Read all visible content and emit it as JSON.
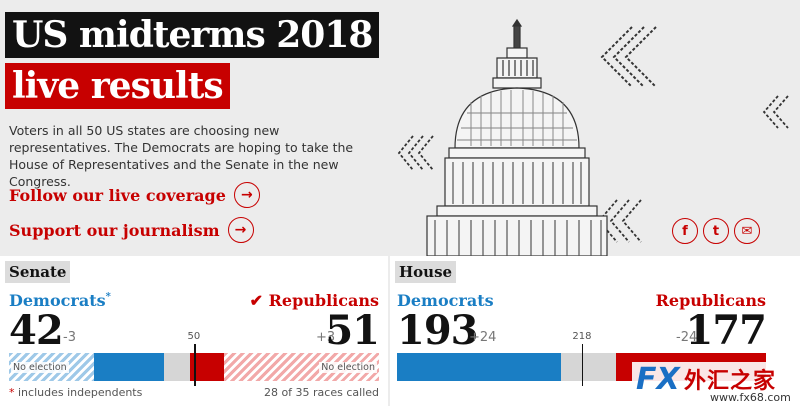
{
  "header": {
    "title_line1": "US midterms 2018",
    "title_line2": "live results",
    "intro": "Voters in all 50 US states are choosing new representatives. The Democrats are hoping to take the House of Representatives and the Senate in the new Congress.",
    "cta_coverage": "Follow our live coverage",
    "cta_support": "Support our journalism",
    "arrow_icon": "→",
    "share": {
      "facebook": "f",
      "twitter": "t",
      "email": "✉"
    }
  },
  "senate": {
    "title": "Senate",
    "dem_label": "Democrats",
    "dem_marker": "*",
    "rep_check": "✔",
    "rep_label": "Republicans",
    "dem_seats": "42",
    "dem_change": "-3",
    "rep_change": "+3",
    "rep_seats": "51",
    "majority": "50",
    "no_election_left": "No election",
    "no_election_right": "No election",
    "footnote_star": "*",
    "footnote": "includes independents",
    "races_called": "28 of 35 races called",
    "bar": {
      "total": 100,
      "majority": 50,
      "dem_no_election": 23,
      "dem_won": 19,
      "uncalled": 7,
      "rep_won": 9,
      "rep_no_election": 42
    }
  },
  "house": {
    "title": "House",
    "dem_label": "Democrats",
    "rep_label": "Republicans",
    "dem_seats": "193",
    "dem_change": "+24",
    "rep_change": "-24",
    "rep_seats": "177",
    "majority": "218",
    "bar": {
      "total": 435,
      "majority": 218,
      "dem_won": 193,
      "uncalled": 65,
      "rep_won": 177
    }
  },
  "watermark": {
    "fx": "FX",
    "chinese": "外汇之家",
    "url": "www.fx68.com"
  },
  "colors": {
    "dem": "#1a7ec4",
    "rep": "#c70000",
    "title_bg": "#121212",
    "accent": "#c70000"
  }
}
